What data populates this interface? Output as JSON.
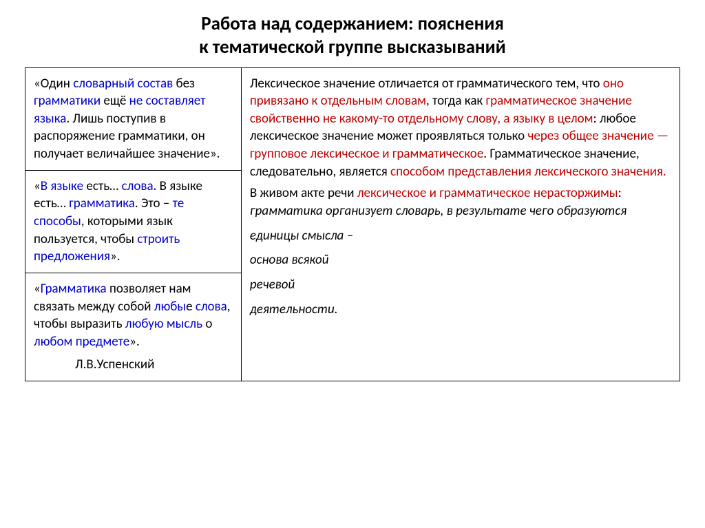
{
  "title_line1": "Работа над содержанием: пояснения",
  "title_line2": "к тематической группе высказываний",
  "quotes": {
    "q1": {
      "t1": "«Один ",
      "t2": "словарный состав",
      "t3": " без ",
      "t4": "грамматики",
      "t5": " ещё ",
      "t6": "не составляет языка",
      "t7": ". Лишь поступив в распоряжение грамматики, он получает величайшее значение»."
    },
    "q2": {
      "t1": "«",
      "t2": "В языке",
      "t3": " есть… ",
      "t4": "слова",
      "t5": ". В языке есть… ",
      "t6": "грамматика",
      "t7": ". Это – ",
      "t8": "те способы",
      "t9": ", которыми язык пользуется, чтобы ",
      "t10": "строить предложения",
      "t11": "»."
    },
    "q3": {
      "t1": "«",
      "t2": "Грамматика",
      "t3": " позволяет нам связать между собой ",
      "t4": "любы",
      "t5": "е ",
      "t6": "слова",
      "t7": ", чтобы выразить ",
      "t8": "любую мысль",
      "t9": " о ",
      "t10": "любом",
      "t11": " ",
      "t12": "предмете",
      "t13": "».",
      "author": "Л.В.Успенский"
    }
  },
  "right": {
    "p1": {
      "t1": "Лексическое значение отличается от грамматического тем, что ",
      "t2": "оно привязано к отдельным словам",
      "t3": ", тогда как ",
      "t4": "грамматическое значение свойственно не какому-то отдельному слову, а языку в целом",
      "t5": ": любое лексическое значение может проявляться только ",
      "t6": "через общее значение — групповое лексическое и грамматическое",
      "t7": ". Грамматическое значение, следовательно, является ",
      "t8": "способом представления лексического значения."
    },
    "p2": {
      "t1": "В живом акте речи ",
      "t2": "лексическое и грамматическое нерасторжимы",
      "t3": ":  ",
      "t4": "грамматика  организует словарь, в результате чего образуются"
    },
    "p3": "единицы смысла –",
    "p4": "основа всякой",
    "p5": "речевой",
    "p6": "деятельности."
  }
}
